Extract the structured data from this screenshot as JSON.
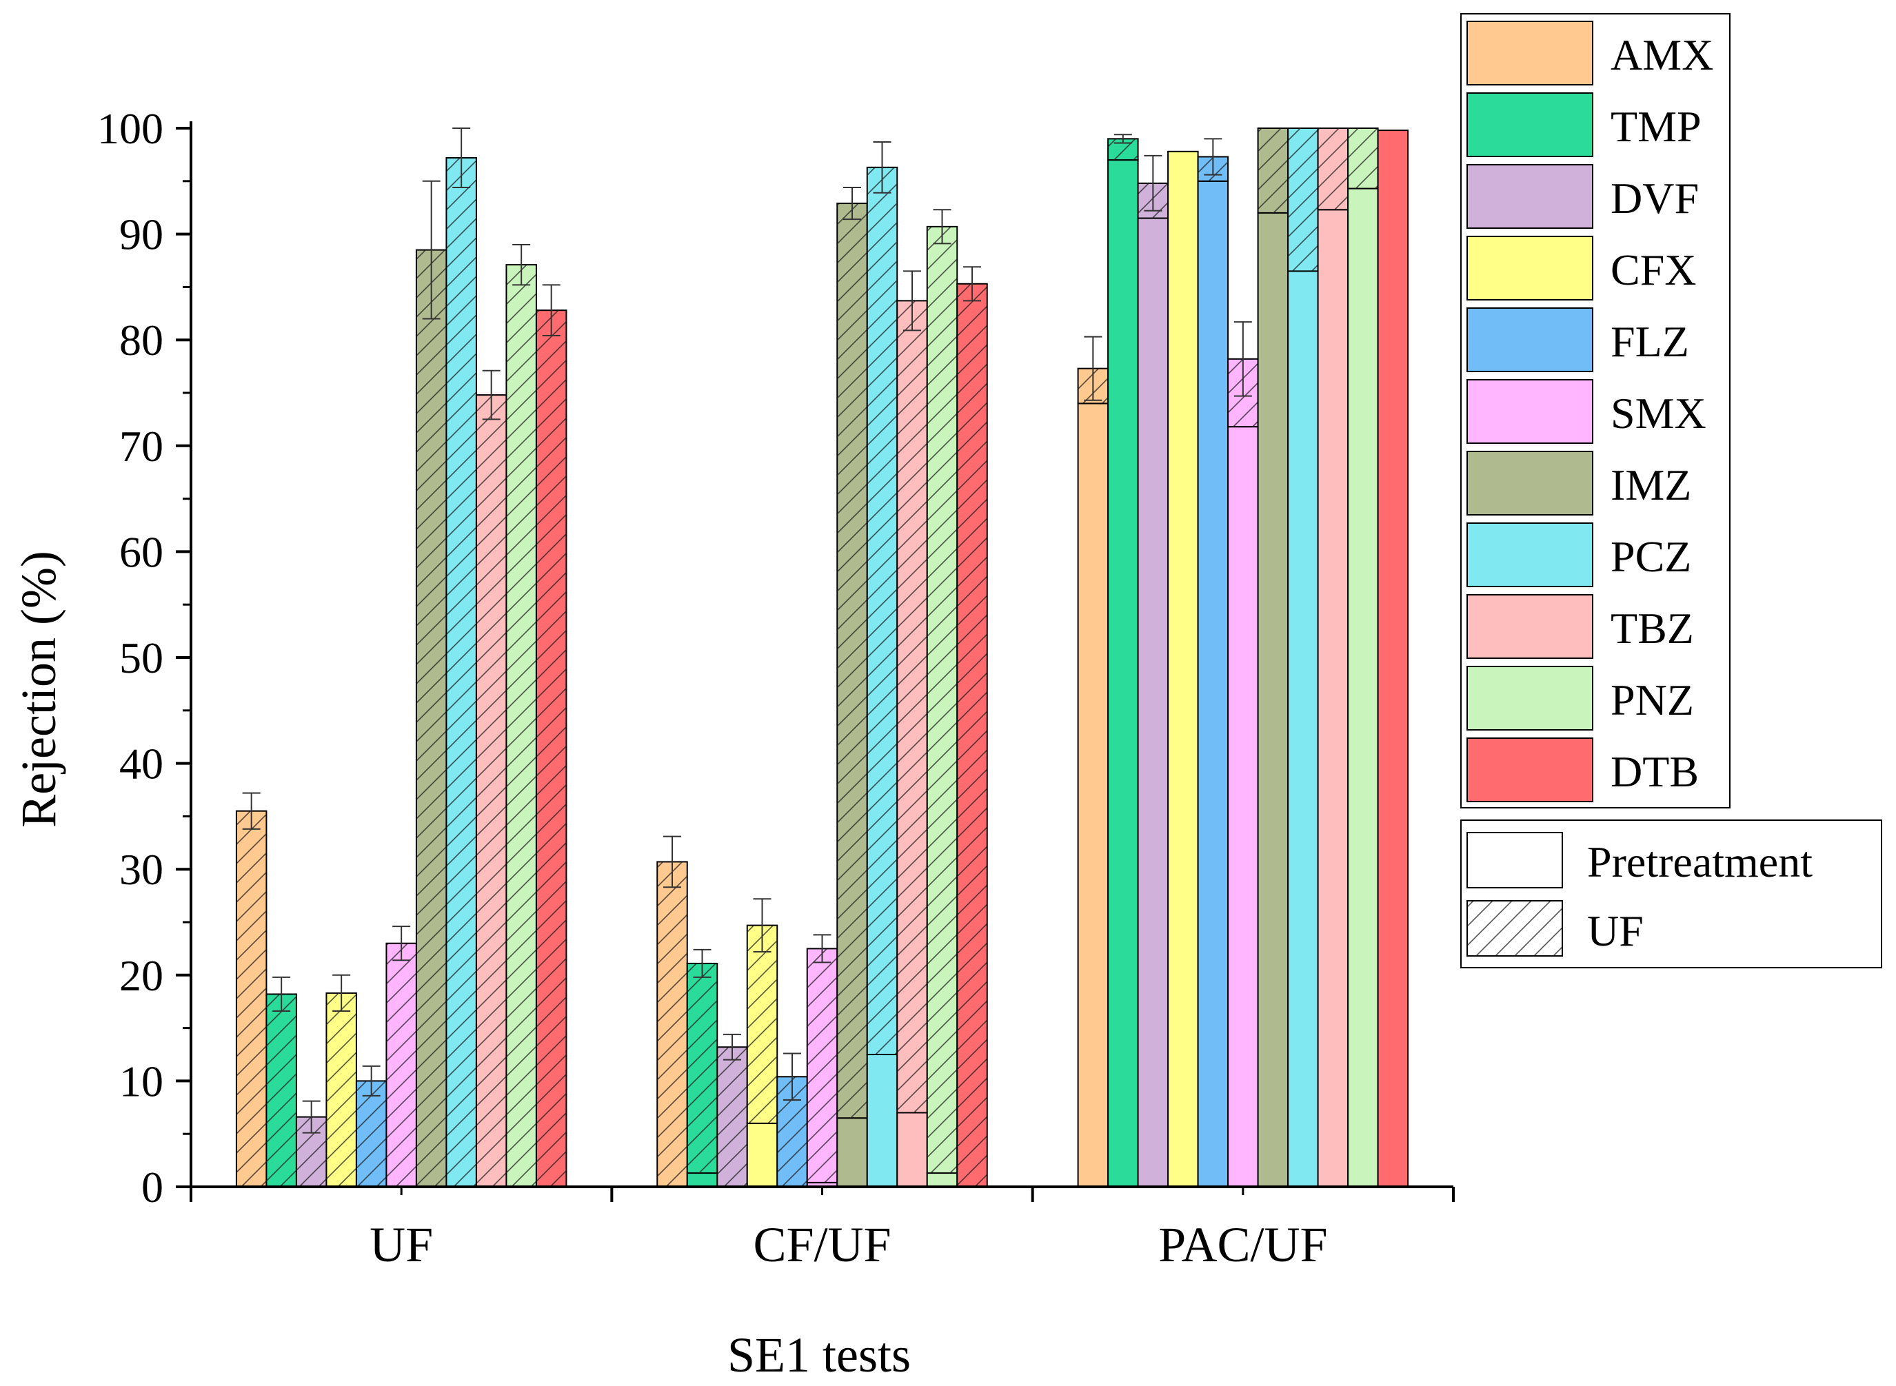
{
  "chart_data": {
    "type": "bar",
    "subtype": "stacked-grouped",
    "title": "",
    "xlabel": "SE1 tests",
    "ylabel": "Rejection (%)",
    "ylim": [
      0,
      100
    ],
    "yticks": [
      0,
      10,
      20,
      30,
      40,
      50,
      60,
      70,
      80,
      90,
      100
    ],
    "categories": [
      "UF",
      "CF/UF",
      "PAC/UF"
    ],
    "stack_parts": [
      {
        "name": "Pretreatment",
        "pattern": "solid"
      },
      {
        "name": "UF",
        "pattern": "hatched"
      }
    ],
    "series": [
      {
        "name": "AMX",
        "color": "#FFC98F",
        "pretreatment": [
          0,
          0,
          74
        ],
        "total": [
          35.5,
          30.7,
          77.3
        ],
        "error": [
          1.7,
          2.4,
          3.0
        ]
      },
      {
        "name": "TMP",
        "color": "#2BDB99",
        "pretreatment": [
          0,
          1.3,
          97
        ],
        "total": [
          18.2,
          21.1,
          99
        ],
        "error": [
          1.6,
          1.3,
          0.4
        ]
      },
      {
        "name": "DVF",
        "color": "#D0B1D9",
        "pretreatment": [
          0,
          0,
          91.5
        ],
        "total": [
          6.6,
          13.2,
          94.8
        ],
        "error": [
          1.5,
          1.2,
          2.6
        ]
      },
      {
        "name": "CFX",
        "color": "#FFFF88",
        "pretreatment": [
          0,
          6.0,
          97.8
        ],
        "total": [
          18.3,
          24.7,
          97.8
        ],
        "error": [
          1.7,
          2.5,
          0
        ]
      },
      {
        "name": "FLZ",
        "color": "#71BDF7",
        "pretreatment": [
          0,
          0,
          95
        ],
        "total": [
          10.0,
          10.4,
          97.3
        ],
        "error": [
          1.4,
          2.2,
          1.7
        ]
      },
      {
        "name": "SMX",
        "color": "#FFB6FF",
        "pretreatment": [
          0,
          0.4,
          71.8
        ],
        "total": [
          23.0,
          22.5,
          78.2
        ],
        "error": [
          1.6,
          1.3,
          3.5
        ]
      },
      {
        "name": "IMZ",
        "color": "#B0BA8F",
        "pretreatment": [
          0,
          6.5,
          92
        ],
        "total": [
          88.5,
          92.9,
          100
        ],
        "error": [
          6.5,
          1.5,
          0
        ]
      },
      {
        "name": "PCZ",
        "color": "#7FE8F0",
        "pretreatment": [
          0,
          12.5,
          86.5
        ],
        "total": [
          97.2,
          96.3,
          100
        ],
        "error": [
          2.8,
          2.4,
          0
        ]
      },
      {
        "name": "TBZ",
        "color": "#FFBEBE",
        "pretreatment": [
          0,
          7.0,
          92.3
        ],
        "total": [
          74.8,
          83.7,
          100
        ],
        "error": [
          2.3,
          2.8,
          0
        ]
      },
      {
        "name": "PNZ",
        "color": "#C9F4BC",
        "pretreatment": [
          0,
          1.3,
          94.3
        ],
        "total": [
          87.1,
          90.7,
          100
        ],
        "error": [
          1.9,
          1.6,
          0
        ]
      },
      {
        "name": "DTB",
        "color": "#FF6B6E",
        "pretreatment": [
          0,
          0,
          99.8
        ],
        "total": [
          82.8,
          85.3,
          99.8
        ],
        "error": [
          2.4,
          1.6,
          0
        ]
      }
    ],
    "legend_position": "top-right"
  }
}
